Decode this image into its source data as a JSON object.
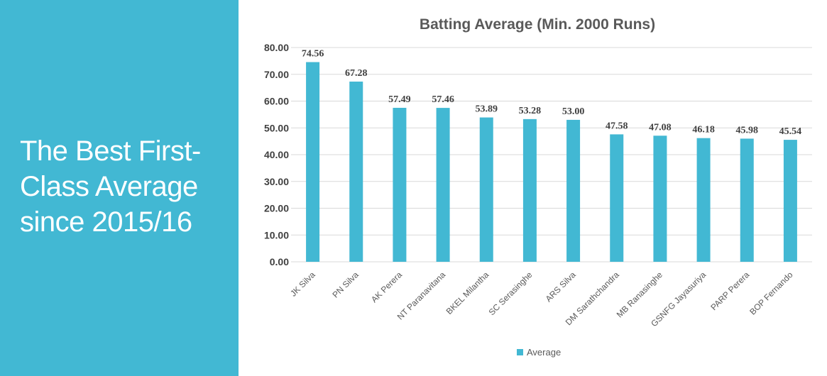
{
  "slide": {
    "heading": "The Best First-\nClass Average\nsince 2015/16",
    "panel_color": "#42b8d3"
  },
  "chart_data": {
    "type": "bar",
    "title": "Batting Average (Min. 2000 Runs)",
    "xlabel": "",
    "ylabel": "",
    "categories": [
      "JK Silva",
      "PN Silva",
      "AK Perera",
      "NT Paranavitana",
      "BKEL Milantha",
      "SC Serasinghe",
      "ARS Silva",
      "DM Sarathchandra",
      "MB Ranasinghe",
      "GSNFG Jayasuriya",
      "PARP Perera",
      "BOP Fernando"
    ],
    "series": [
      {
        "name": "Average",
        "values": [
          74.56,
          67.28,
          57.49,
          57.46,
          53.89,
          53.28,
          53.0,
          47.58,
          47.08,
          46.18,
          45.98,
          45.54
        ],
        "labels": [
          "74.56",
          "67.28",
          "57.49",
          "57.46",
          "53.89",
          "53.28",
          "53.00",
          "47.58",
          "47.08",
          "46.18",
          "45.98",
          "45.54"
        ],
        "color": "#42b8d3"
      }
    ],
    "ylim": [
      0,
      80
    ],
    "yticks": [
      0,
      10,
      20,
      30,
      40,
      50,
      60,
      70,
      80
    ],
    "ytick_labels": [
      "0.00",
      "10.00",
      "20.00",
      "30.00",
      "40.00",
      "50.00",
      "60.00",
      "70.00",
      "80.00"
    ],
    "grid": true,
    "gridline_color": "#d9d9d9",
    "legend_position": "bottom"
  }
}
